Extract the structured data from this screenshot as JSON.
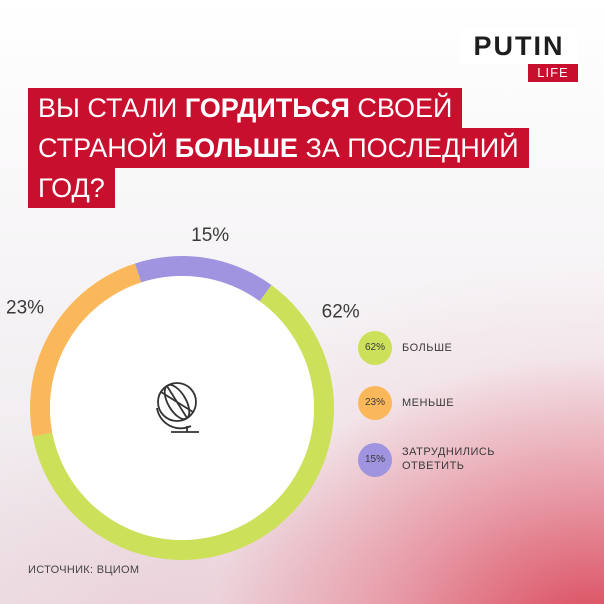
{
  "logo": {
    "main": "PUTIN",
    "sub": "LIFE"
  },
  "title": {
    "line1_pre": "ВЫ СТАЛИ ",
    "line1_bold": "ГОРДИТЬСЯ",
    "line1_post": " СВОЕЙ",
    "line2_pre": "СТРАНОЙ ",
    "line2_bold": "БОЛЬШЕ",
    "line2_post": " ЗА ПОСЛЕДНИЙ",
    "line3": "ГОД?"
  },
  "chart_data": {
    "type": "pie",
    "categories": [
      "БОЛЬШЕ",
      "МЕНЬШЕ",
      "ЗАТРУДНИЛИСЬ ОТВЕТИТЬ"
    ],
    "values": [
      62,
      23,
      15
    ],
    "labels": [
      "62%",
      "23%",
      "15%"
    ],
    "colors": [
      "#cde05a",
      "#fbb85a",
      "#a093df"
    ],
    "donut": true,
    "center_icon": "globe-icon",
    "legend_position": "right"
  },
  "legend": [
    {
      "pct": "62%",
      "label_line1": "БОЛЬШЕ",
      "label_line2": ""
    },
    {
      "pct": "23%",
      "label_line1": "МЕНЬШЕ",
      "label_line2": ""
    },
    {
      "pct": "15%",
      "label_line1": "ЗАТРУДНИЛИСЬ",
      "label_line2": "ОТВЕТИТЬ"
    }
  ],
  "source": "ИСТОЧНИК: ВЦИОМ"
}
